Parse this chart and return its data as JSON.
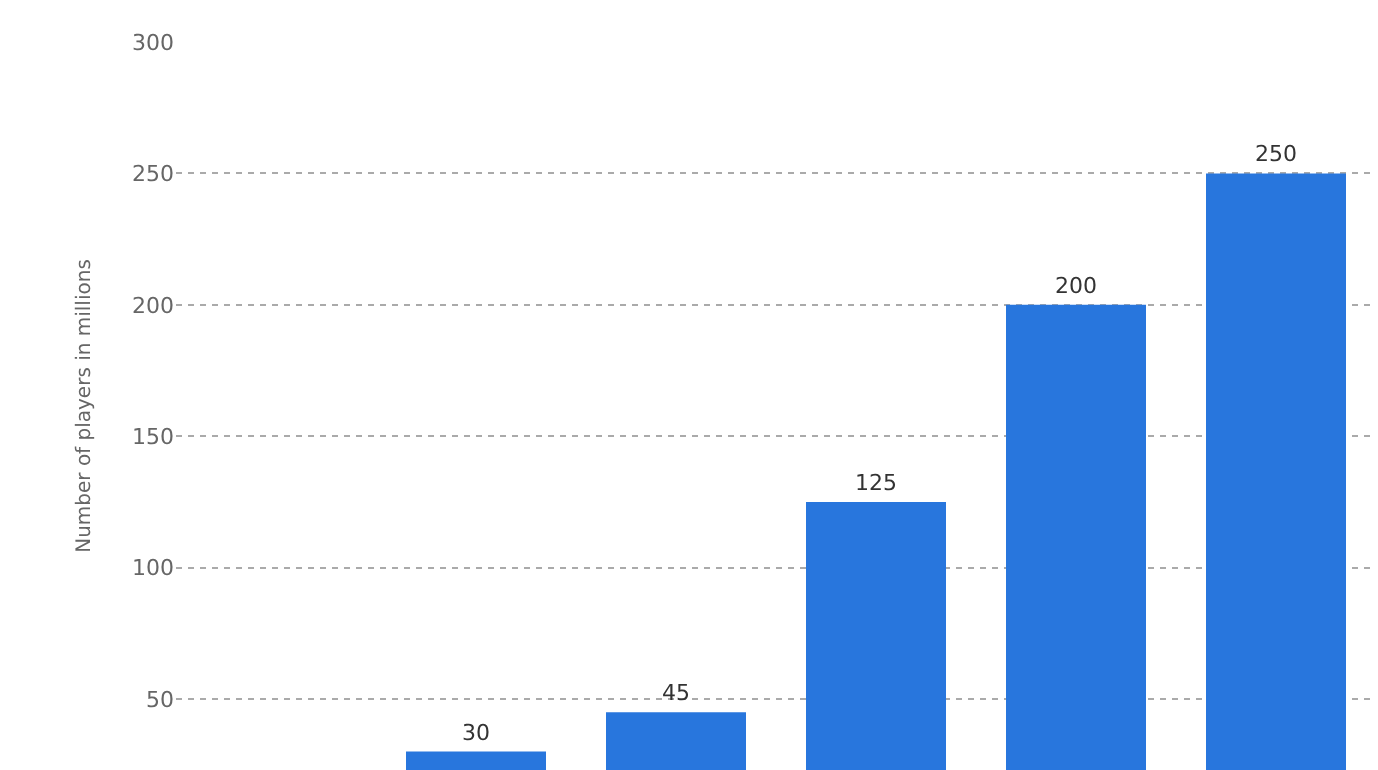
{
  "chart_data": {
    "type": "bar",
    "ylabel": "Number of players in millions",
    "categories": [
      null,
      null,
      null,
      null,
      null,
      null
    ],
    "values": [
      null,
      30,
      45,
      125,
      200,
      250
    ],
    "color": "#2876dd",
    "data_labels": true,
    "ylim": [
      23,
      300
    ],
    "yticks": [
      50,
      100,
      150,
      200,
      250,
      300
    ],
    "grid": "y"
  }
}
